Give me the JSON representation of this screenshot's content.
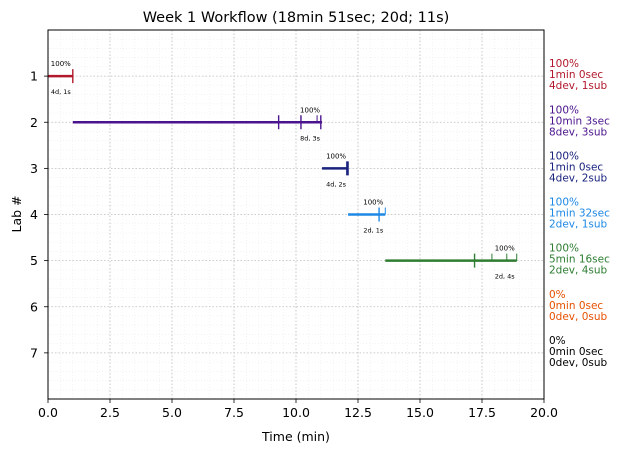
{
  "chart_data": {
    "type": "timeline",
    "title": "Week 1 Workflow (18min 51sec; 20d; 11s)",
    "xlabel": "Time (min)",
    "ylabel": "Lab #",
    "xlim": [
      0,
      20
    ],
    "ylim": [
      8,
      0
    ],
    "x_ticks": [
      "0.0",
      "2.5",
      "5.0",
      "7.5",
      "10.0",
      "12.5",
      "15.0",
      "17.5",
      "20.0"
    ],
    "y_ticks": [
      "1",
      "2",
      "3",
      "4",
      "5",
      "6",
      "7"
    ],
    "grid": true,
    "labs": [
      {
        "lab": 1,
        "color": "#b2182b",
        "start": 0.0,
        "end": 1.0,
        "dev_marks": [],
        "sub_marks": [
          1.0
        ],
        "pct": "100%",
        "counts": "4d, 1s",
        "right_label": [
          "100%",
          "1min 0sec",
          "4dev, 1sub"
        ]
      },
      {
        "lab": 2,
        "color": "#4a148c",
        "start": 1.0,
        "end": 11.05,
        "dev_marks": [
          10.85
        ],
        "sub_marks": [
          9.3,
          10.2,
          11.0
        ],
        "pct": "100%",
        "counts": "8d, 3s",
        "right_label": [
          "100%",
          "10min 3sec",
          "8dev, 3sub"
        ]
      },
      {
        "lab": 3,
        "color": "#1a237e",
        "start": 11.05,
        "end": 12.1,
        "dev_marks": [],
        "sub_marks": [
          12.05,
          12.1
        ],
        "pct": "100%",
        "counts": "4d, 2s",
        "right_label": [
          "100%",
          "1min 0sec",
          "4dev, 2sub"
        ]
      },
      {
        "lab": 4,
        "color": "#1e88e5",
        "start": 12.1,
        "end": 13.6,
        "dev_marks": [
          13.6
        ],
        "sub_marks": [
          13.35
        ],
        "pct": "100%",
        "counts": "2d, 1s",
        "right_label": [
          "100%",
          "1min 32sec",
          "2dev, 1sub"
        ]
      },
      {
        "lab": 5,
        "color": "#2e7d32",
        "start": 13.6,
        "end": 18.9,
        "dev_marks": [
          17.9,
          18.5,
          18.9
        ],
        "sub_marks": [
          17.2
        ],
        "pct": "100%",
        "counts": "2d, 4s",
        "right_label": [
          "100%",
          "5min 16sec",
          "2dev, 4sub"
        ]
      },
      {
        "lab": 6,
        "color": "#e65100",
        "start": null,
        "end": null,
        "dev_marks": [],
        "sub_marks": [],
        "pct": "",
        "counts": "",
        "right_label": [
          "0%",
          "0min 0sec",
          "0dev, 0sub"
        ]
      },
      {
        "lab": 7,
        "color": "#000000",
        "start": null,
        "end": null,
        "dev_marks": [],
        "sub_marks": [],
        "pct": "",
        "counts": "",
        "right_label": [
          "0%",
          "0min 0sec",
          "0dev, 0sub"
        ]
      }
    ]
  }
}
